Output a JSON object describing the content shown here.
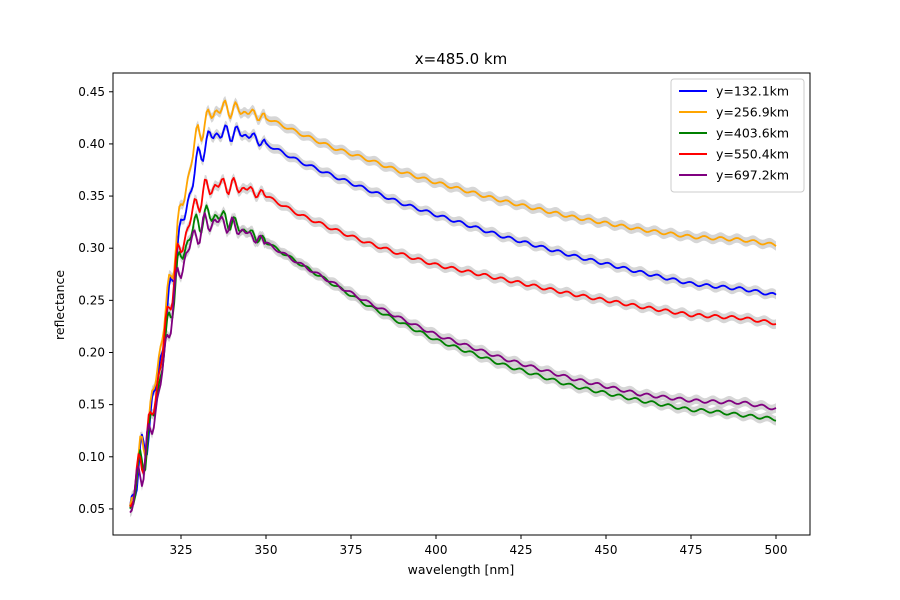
{
  "chart_data": {
    "type": "line",
    "title": "x=485.0 km",
    "xlabel": "wavelength [nm]",
    "ylabel": "reflectance",
    "xlim": [
      305,
      510
    ],
    "ylim": [
      0.025,
      0.468
    ],
    "xticks": [
      325,
      350,
      375,
      400,
      425,
      450,
      475,
      500
    ],
    "yticks": [
      0.05,
      0.1,
      0.15,
      0.2,
      0.25,
      0.3,
      0.35,
      0.4,
      0.45
    ],
    "grid": false,
    "legend_position": "top-right",
    "uncertainty_band_color": "#c8c8c8",
    "series": [
      {
        "name": "y=132.1km",
        "color": "#0000ff",
        "x": [
          310,
          313,
          316,
          318,
          320,
          322,
          324,
          326,
          328,
          330,
          332,
          335,
          338,
          341,
          345,
          350,
          360,
          370,
          380,
          390,
          400,
          420,
          440,
          460,
          475,
          480,
          490,
          500
        ],
        "y": [
          0.052,
          0.095,
          0.135,
          0.175,
          0.215,
          0.26,
          0.305,
          0.33,
          0.36,
          0.385,
          0.4,
          0.41,
          0.41,
          0.411,
          0.408,
          0.4,
          0.383,
          0.369,
          0.356,
          0.343,
          0.332,
          0.311,
          0.293,
          0.277,
          0.266,
          0.264,
          0.261,
          0.255
        ]
      },
      {
        "name": "y=256.9km",
        "color": "#ffa500",
        "x": [
          310,
          313,
          316,
          318,
          320,
          322,
          324,
          326,
          328,
          330,
          332,
          335,
          338,
          341,
          345,
          350,
          360,
          370,
          380,
          390,
          400,
          420,
          440,
          460,
          475,
          480,
          490,
          500
        ],
        "y": [
          0.052,
          0.1,
          0.14,
          0.185,
          0.23,
          0.27,
          0.32,
          0.35,
          0.385,
          0.41,
          0.42,
          0.432,
          0.434,
          0.433,
          0.43,
          0.425,
          0.41,
          0.396,
          0.385,
          0.373,
          0.363,
          0.345,
          0.33,
          0.318,
          0.311,
          0.31,
          0.308,
          0.303
        ]
      },
      {
        "name": "y=403.6km",
        "color": "#008000",
        "x": [
          310,
          313,
          316,
          318,
          320,
          322,
          324,
          326,
          328,
          330,
          332,
          335,
          338,
          341,
          345,
          350,
          360,
          370,
          380,
          390,
          400,
          420,
          440,
          460,
          475,
          480,
          490,
          500
        ],
        "y": [
          0.05,
          0.09,
          0.125,
          0.16,
          0.2,
          0.24,
          0.28,
          0.3,
          0.315,
          0.325,
          0.33,
          0.332,
          0.328,
          0.322,
          0.315,
          0.306,
          0.285,
          0.265,
          0.245,
          0.228,
          0.212,
          0.188,
          0.168,
          0.154,
          0.145,
          0.144,
          0.14,
          0.136
        ]
      },
      {
        "name": "y=550.4km",
        "color": "#ff0000",
        "x": [
          310,
          313,
          316,
          318,
          320,
          322,
          324,
          326,
          328,
          330,
          332,
          335,
          338,
          341,
          345,
          350,
          360,
          370,
          380,
          390,
          400,
          420,
          440,
          460,
          475,
          480,
          490,
          500
        ],
        "y": [
          0.052,
          0.092,
          0.13,
          0.17,
          0.21,
          0.255,
          0.29,
          0.31,
          0.33,
          0.345,
          0.355,
          0.36,
          0.361,
          0.359,
          0.356,
          0.35,
          0.332,
          0.318,
          0.305,
          0.294,
          0.284,
          0.27,
          0.256,
          0.244,
          0.236,
          0.235,
          0.233,
          0.228
        ]
      },
      {
        "name": "y=697.2km",
        "color": "#800080",
        "x": [
          310,
          313,
          316,
          318,
          320,
          322,
          324,
          326,
          328,
          330,
          332,
          335,
          338,
          341,
          345,
          350,
          360,
          370,
          380,
          390,
          400,
          420,
          440,
          460,
          475,
          480,
          490,
          500
        ],
        "y": [
          0.047,
          0.085,
          0.12,
          0.155,
          0.19,
          0.235,
          0.27,
          0.29,
          0.305,
          0.315,
          0.322,
          0.326,
          0.324,
          0.32,
          0.313,
          0.305,
          0.285,
          0.266,
          0.248,
          0.232,
          0.217,
          0.194,
          0.175,
          0.16,
          0.154,
          0.153,
          0.152,
          0.146
        ]
      }
    ]
  }
}
